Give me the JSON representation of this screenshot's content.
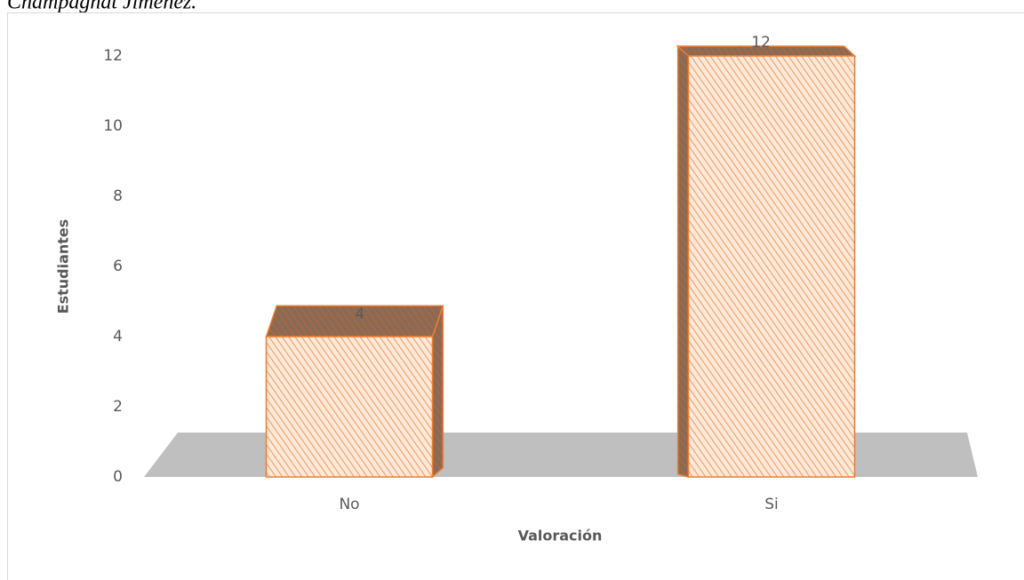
{
  "caption": "Champagnat Jiménez.",
  "chart_data": {
    "type": "bar3d",
    "categories": [
      "No",
      "Si"
    ],
    "values": [
      4,
      12
    ],
    "color": "#ed7d31",
    "fill": "#fde9d9",
    "xlabel": "Valoración",
    "ylabel": "Estudiantes",
    "ylim": [
      0,
      12
    ],
    "yticks": [
      0,
      2,
      4,
      6,
      8,
      10,
      12
    ],
    "grid": false
  }
}
